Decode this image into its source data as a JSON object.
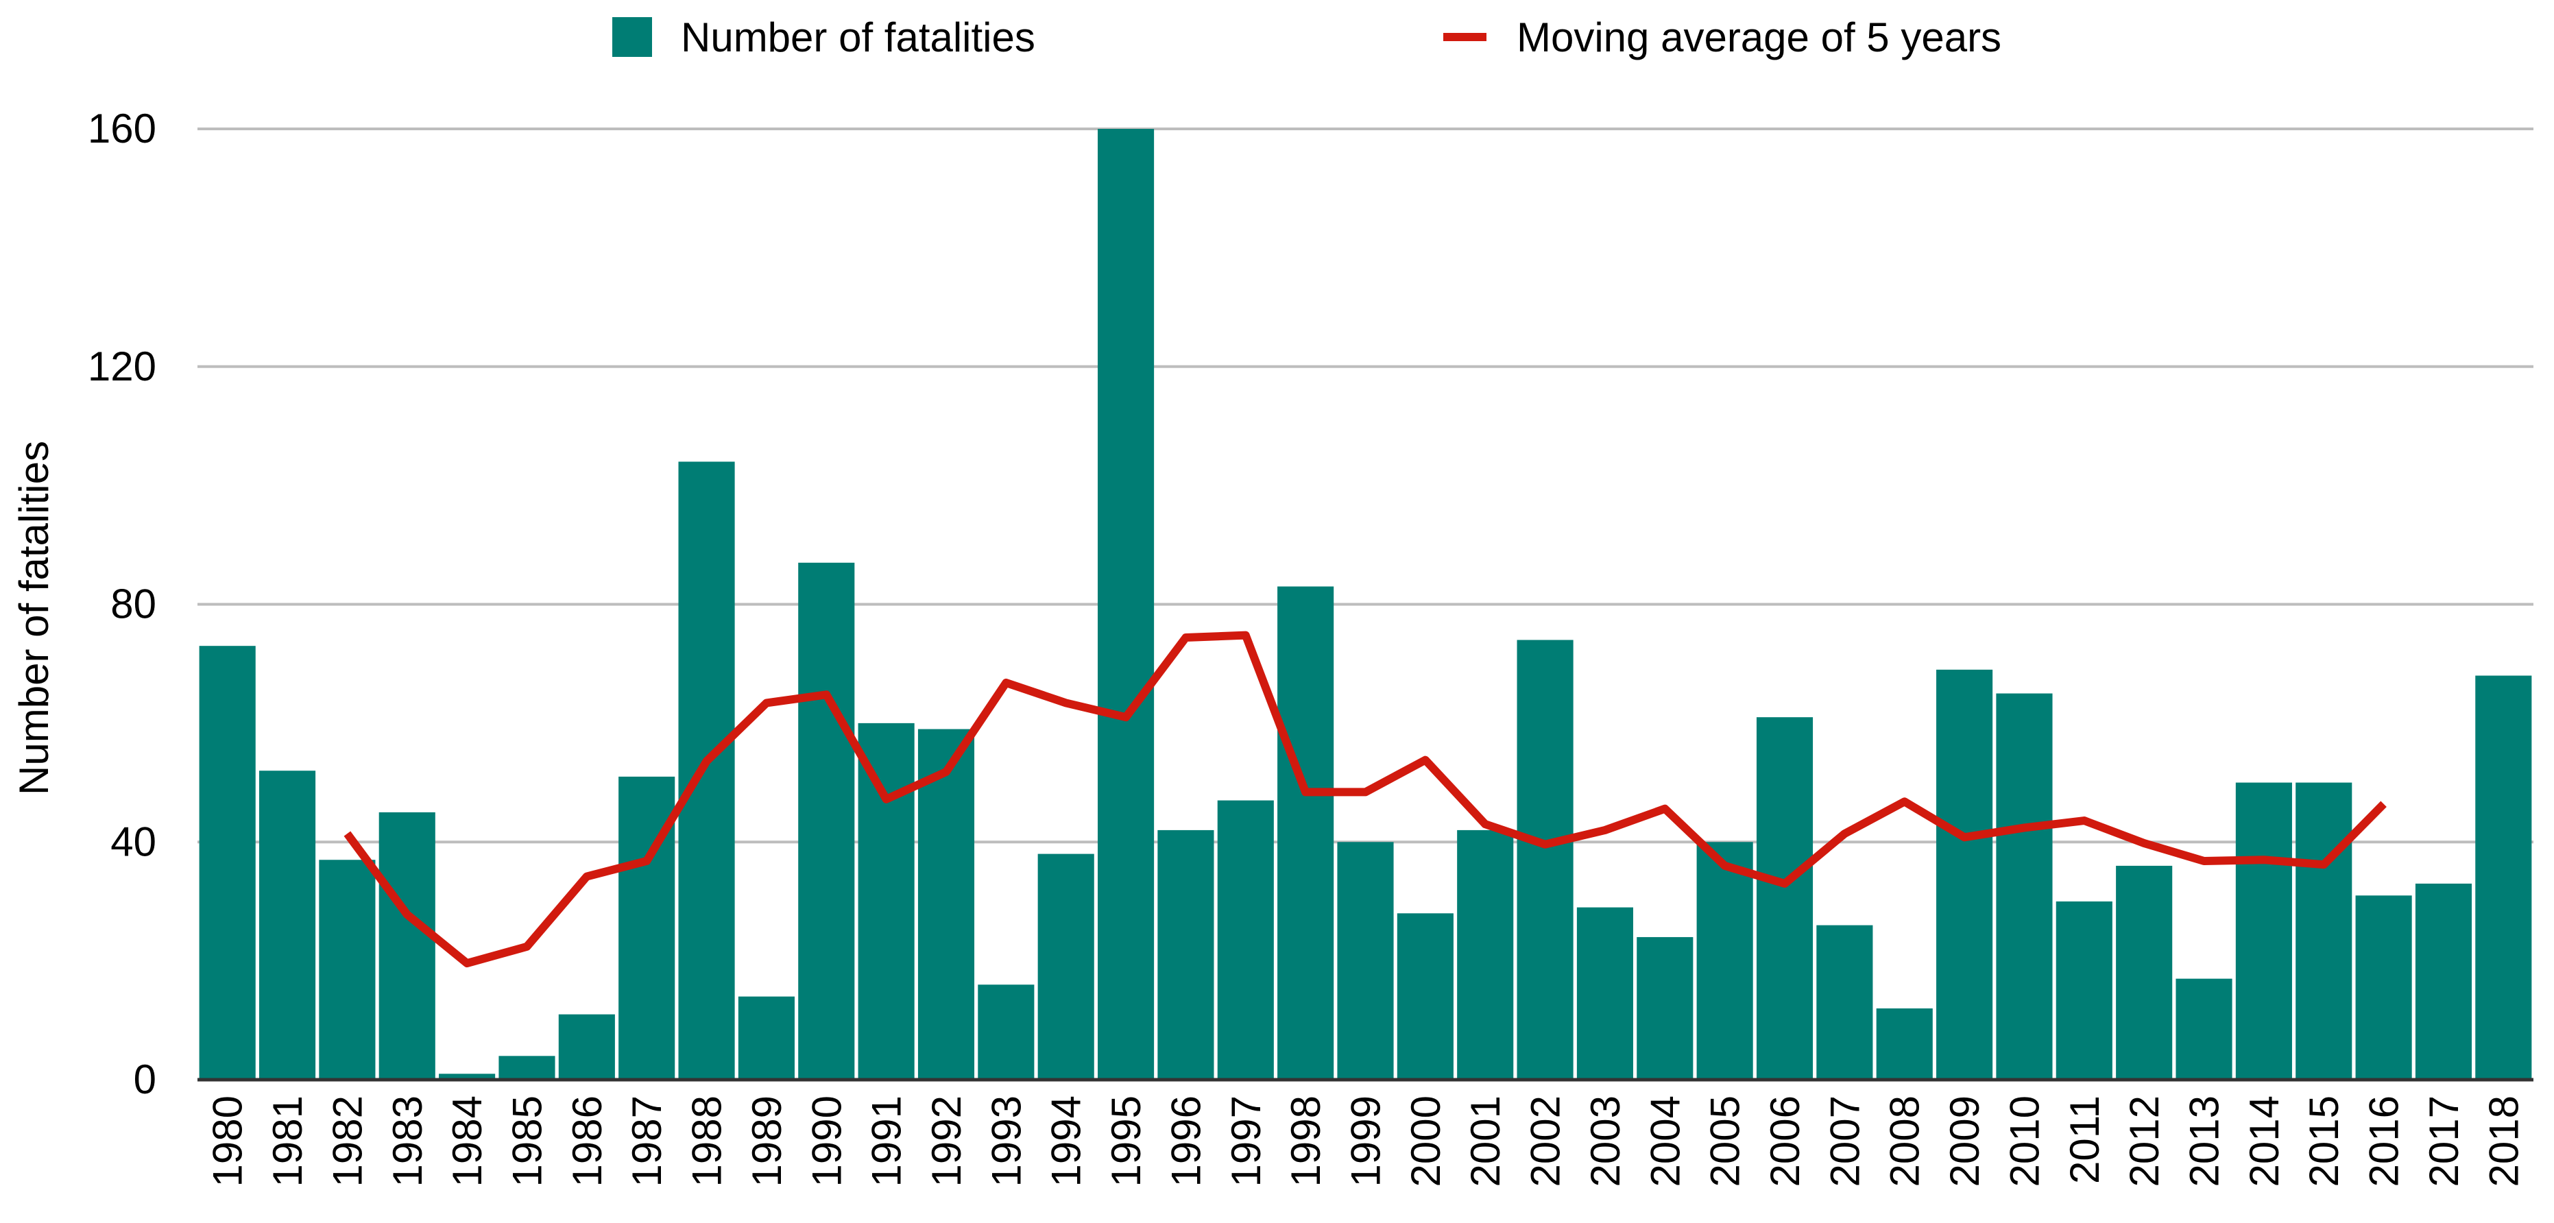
{
  "chart_data": {
    "type": "bar",
    "title": "",
    "xlabel": "",
    "ylabel": "Number of fatalities",
    "ylim": [
      0,
      160
    ],
    "yticks": [
      0,
      40,
      80,
      120,
      160
    ],
    "grid": true,
    "legend_position": "top",
    "categories": [
      "1980",
      "1981",
      "1982",
      "1983",
      "1984",
      "1985",
      "1986",
      "1987",
      "1988",
      "1989",
      "1990",
      "1991",
      "1992",
      "1993",
      "1994",
      "1995",
      "1996",
      "1997",
      "1998",
      "1999",
      "2000",
      "2001",
      "2002",
      "2003",
      "2004",
      "2005",
      "2006",
      "2007",
      "2008",
      "2009",
      "2010",
      "2011",
      "2012",
      "2013",
      "2014",
      "2015",
      "2016",
      "2017",
      "2018"
    ],
    "series": [
      {
        "name": "Number of fatalities",
        "type": "bar",
        "color": "#007D74",
        "values": [
          73,
          52,
          37,
          45,
          1,
          4,
          11,
          51,
          104,
          14,
          87,
          60,
          59,
          16,
          38,
          160,
          42,
          47,
          83,
          40,
          28,
          42,
          74,
          29,
          24,
          40,
          61,
          26,
          12,
          69,
          65,
          30,
          36,
          17,
          50,
          50,
          31,
          33,
          68
        ]
      },
      {
        "name": "Moving average of 5 years",
        "type": "line",
        "color": "#D11A0E",
        "values": [
          null,
          null,
          41.4,
          27.8,
          19.6,
          22.4,
          34.2,
          36.8,
          53.6,
          63.4,
          64.8,
          47.2,
          51.8,
          66.8,
          63.4,
          61,
          74.4,
          74.8,
          48.4,
          48.4,
          53.8,
          43,
          39.6,
          42,
          45.6,
          36,
          33,
          41.4,
          46.8,
          40.8,
          42.4,
          43.6,
          39.8,
          36.8,
          37,
          36.2,
          46.4,
          null,
          null
        ]
      }
    ]
  }
}
